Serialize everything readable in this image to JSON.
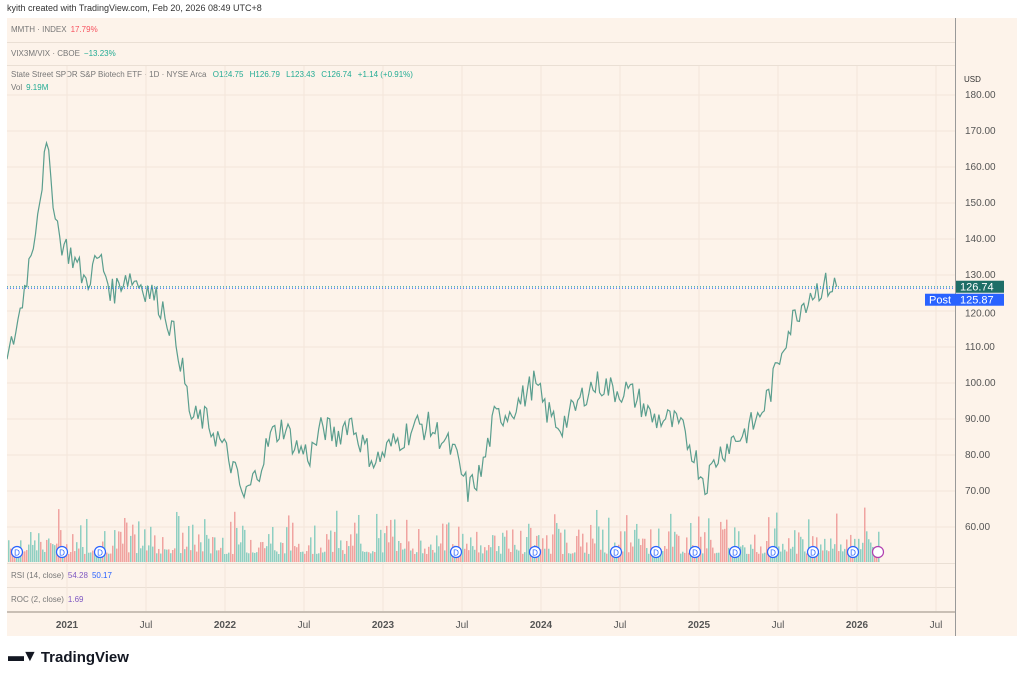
{
  "header": {
    "caption": "kyith created with TradingView.com, Feb 20, 2026 08:49 UTC+8"
  },
  "panes": {
    "mmth": {
      "label": "MMTH · INDEX",
      "value": "17.79%",
      "color": "#f7525f"
    },
    "vix": {
      "label": "VIX3M/VIX · CBOE",
      "value": "−13.23%",
      "color": "#22ab94"
    },
    "main": {
      "title": "State Street SPDR S&P Biotech ETF · 1D · NYSE Arca",
      "open": "O124.75",
      "high": "H126.79",
      "low": "L123.43",
      "close": "C126.74",
      "change": "+1.14 (+0.91%)",
      "vol_label": "Vol",
      "vol_value": "9.19M"
    },
    "rsi": {
      "label": "RSI (14, close)",
      "v1": "54.28",
      "v2": "50.17"
    },
    "roc": {
      "label": "ROC (2, close)",
      "v1": "1.69"
    }
  },
  "axis": {
    "currency": "USD",
    "last_price": "126.74",
    "post_label": "Post",
    "post_price": "125.87"
  },
  "chart_data": {
    "type": "line",
    "title": "State Street SPDR S&P Biotech ETF · 1D",
    "ylim": [
      50,
      185
    ],
    "y_ticks": [
      "180.00",
      "170.00",
      "160.00",
      "150.00",
      "140.00",
      "130.00",
      "120.00",
      "110.00",
      "100.00",
      "90.00",
      "80.00",
      "70.00",
      "60.00"
    ],
    "x_ticks": [
      "2021",
      "Jul",
      "2022",
      "Jul",
      "2023",
      "Jul",
      "2024",
      "Jul",
      "2025",
      "Jul",
      "2026",
      "Jul"
    ],
    "monthly_close": [
      105,
      120,
      140,
      165,
      140,
      135,
      128,
      135,
      125,
      130,
      128,
      125,
      120,
      110,
      90,
      90,
      85,
      78,
      68,
      75,
      85,
      88,
      82,
      80,
      88,
      85,
      90,
      83,
      78,
      82,
      85,
      88,
      88,
      85,
      80,
      70,
      75,
      90,
      92,
      95,
      100,
      92,
      88,
      92,
      98,
      100,
      98,
      98,
      95,
      90,
      90,
      88,
      82,
      72,
      80,
      84,
      86,
      90,
      98,
      112,
      120,
      125,
      127,
      126.74
    ],
    "start": "2020-11",
    "dividend_markers": 12
  },
  "footer": {
    "brand": "TradingView"
  }
}
